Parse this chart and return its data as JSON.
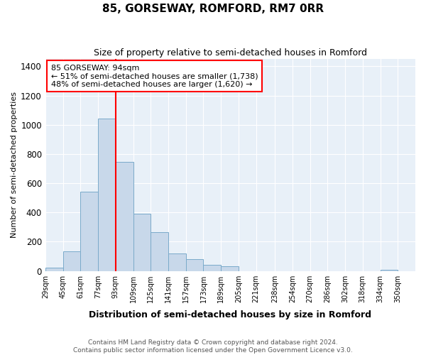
{
  "title": "85, GORSEWAY, ROMFORD, RM7 0RR",
  "subtitle": "Size of property relative to semi-detached houses in Romford",
  "xlabel": "Distribution of semi-detached houses by size in Romford",
  "ylabel": "Number of semi-detached properties",
  "footer_line1": "Contains HM Land Registry data © Crown copyright and database right 2024.",
  "footer_line2": "Contains public sector information licensed under the Open Government Licence v3.0.",
  "annotation_title": "85 GORSEWAY: 94sqm",
  "annotation_line1": "← 51% of semi-detached houses are smaller (1,738)",
  "annotation_line2": "48% of semi-detached houses are larger (1,620) →",
  "bar_color": "#c8d8ea",
  "bar_edge_color": "#7aaaca",
  "red_line_x": 93,
  "bin_edges": [
    29,
    45,
    61,
    77,
    93,
    109,
    125,
    141,
    157,
    173,
    189,
    205,
    221,
    238,
    254,
    270,
    286,
    302,
    318,
    334,
    350,
    366
  ],
  "bin_labels": [
    "29sqm",
    "45sqm",
    "61sqm",
    "77sqm",
    "93sqm",
    "109sqm",
    "125sqm",
    "141sqm",
    "157sqm",
    "173sqm",
    "189sqm",
    "205sqm",
    "221sqm",
    "238sqm",
    "254sqm",
    "270sqm",
    "286sqm",
    "302sqm",
    "318sqm",
    "334sqm",
    "350sqm"
  ],
  "counts": [
    25,
    135,
    540,
    1040,
    745,
    390,
    265,
    120,
    80,
    40,
    30,
    0,
    0,
    0,
    0,
    0,
    0,
    0,
    0,
    10,
    0
  ],
  "ylim": [
    0,
    1450
  ],
  "yticks": [
    0,
    200,
    400,
    600,
    800,
    1000,
    1200,
    1400
  ],
  "plot_bg_color": "#e8f0f8",
  "grid_color": "#ffffff"
}
